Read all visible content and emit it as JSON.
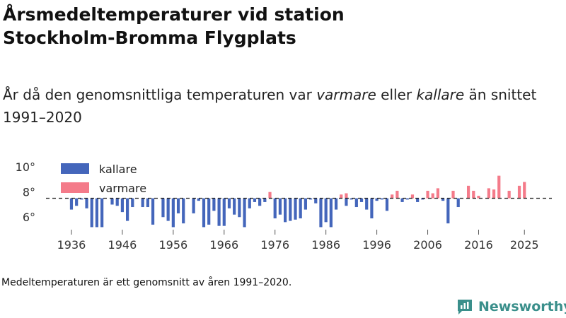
{
  "title": "Årsmedeltemperaturer vid station Stockholm-Bromma Flygplats",
  "subtitle": {
    "part1": "År då den genomsnittliga temperaturen var ",
    "warm_word": "varmare",
    "part2": " eller ",
    "cold_word": "kallare",
    "part3": " än snittet 1991–2020"
  },
  "note": "Medeltemperaturen är ett genomsnitt av åren 1991–2020.",
  "brand": {
    "name": "Newsworthy",
    "icon": "newsworthy-logo-icon"
  },
  "colors": {
    "kallare": "#4466bb",
    "varmare": "#f47b8a",
    "baseline": "#222222",
    "axis_text": "#333333",
    "brand": "#3a8f8b"
  },
  "chart_data": {
    "type": "bar",
    "title": "Årsmedeltemperaturer vid station Stockholm-Bromma Flygplats",
    "xlabel": "",
    "ylabel": "",
    "baseline": 7.5,
    "ylim": [
      5,
      10.8
    ],
    "xlim": [
      1931,
      2029
    ],
    "yticks": [
      6,
      8,
      10
    ],
    "ytick_labels": [
      "6°",
      "8°",
      "10°"
    ],
    "xticks": [
      1936,
      1946,
      1956,
      1966,
      1976,
      1986,
      1996,
      2006,
      2016,
      2025
    ],
    "xtick_labels": [
      "1936",
      "1946",
      "1956",
      "1966",
      "1976",
      "1986",
      "1996",
      "2006",
      "2016",
      "2025"
    ],
    "legend": [
      {
        "key": "kallare",
        "label": "kallare"
      },
      {
        "key": "varmare",
        "label": "varmare"
      }
    ],
    "legend_position": "top-left",
    "series": [
      {
        "name": "kallare",
        "years": [
          1936,
          1937,
          1938,
          1939,
          1940,
          1941,
          1942,
          1944,
          1945,
          1946,
          1947,
          1948,
          1950,
          1951,
          1952,
          1954,
          1955,
          1956,
          1957,
          1958,
          1960,
          1961,
          1962,
          1963,
          1964,
          1965,
          1966,
          1967,
          1968,
          1969,
          1970,
          1971,
          1972,
          1973,
          1974,
          1976,
          1977,
          1978,
          1979,
          1980,
          1981,
          1982,
          1983,
          1984,
          1985,
          1986,
          1987,
          1988,
          1990,
          1991,
          1992,
          1993,
          1994,
          1995,
          1996,
          1997,
          1998,
          2001,
          2002,
          2004,
          2005,
          2009,
          2010,
          2012
        ],
        "values": [
          6.6,
          6.9,
          7.4,
          6.7,
          5.2,
          5.2,
          5.2,
          7.0,
          6.9,
          6.4,
          5.7,
          6.8,
          6.8,
          6.8,
          5.4,
          6.0,
          5.7,
          5.2,
          6.3,
          5.5,
          6.3,
          7.3,
          5.2,
          5.4,
          6.5,
          5.3,
          5.3,
          6.7,
          6.2,
          6.0,
          5.2,
          6.7,
          7.2,
          6.9,
          7.2,
          5.9,
          6.2,
          5.6,
          5.7,
          5.8,
          5.9,
          6.6,
          7.4,
          7.1,
          5.2,
          5.6,
          5.2,
          6.6,
          6.9,
          7.4,
          6.8,
          7.2,
          6.6,
          5.9,
          7.3,
          7.4,
          6.5,
          7.2,
          7.4,
          7.2,
          7.4,
          7.3,
          5.5,
          6.8
        ]
      },
      {
        "name": "varmare",
        "years": [
          1975,
          1989,
          1990,
          1999,
          2000,
          2003,
          2006,
          2007,
          2008,
          2011,
          2014,
          2015,
          2016,
          2018,
          2019,
          2020,
          2022,
          2024,
          2025
        ],
        "values": [
          8.0,
          7.8,
          7.9,
          7.8,
          8.1,
          7.8,
          8.1,
          7.9,
          8.3,
          8.1,
          8.5,
          8.1,
          7.7,
          8.3,
          8.2,
          9.3,
          8.1,
          8.5,
          8.8
        ]
      }
    ]
  }
}
